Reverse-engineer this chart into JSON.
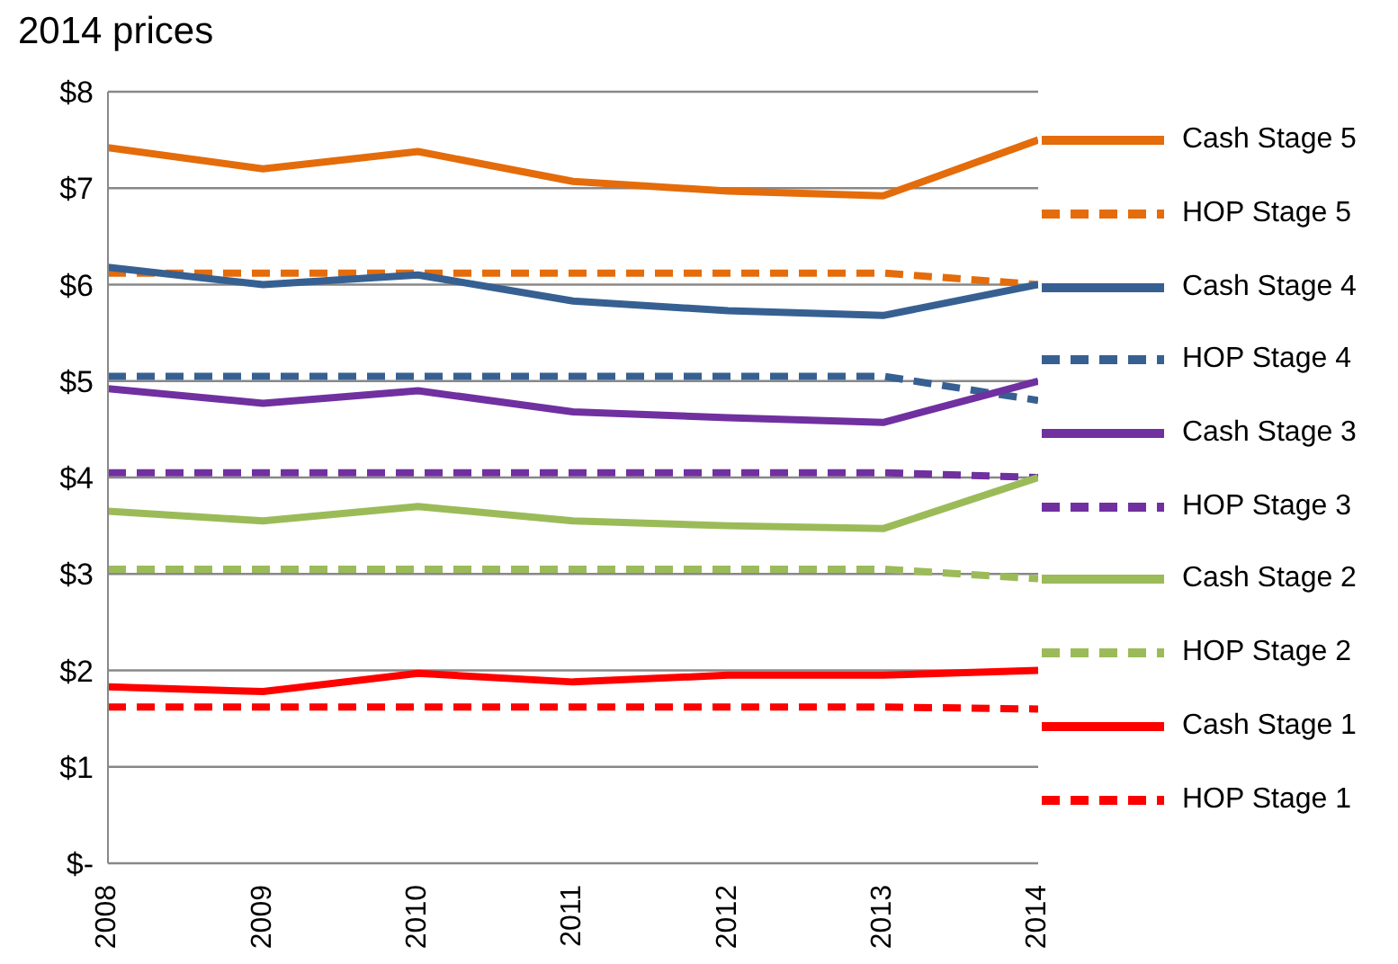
{
  "chart_data": {
    "type": "line",
    "title": "2014 prices",
    "x": [
      2008,
      2009,
      2010,
      2011,
      2012,
      2013,
      2014
    ],
    "xlim": [
      2008,
      2014
    ],
    "xticks": [
      2008,
      2009,
      2010,
      2011,
      2012,
      2013,
      2014
    ],
    "ylim": [
      0,
      8
    ],
    "yticks": [
      {
        "value": 0,
        "label": "$-"
      },
      {
        "value": 1,
        "label": "$1"
      },
      {
        "value": 2,
        "label": "$2"
      },
      {
        "value": 3,
        "label": "$3"
      },
      {
        "value": 4,
        "label": "$4"
      },
      {
        "value": 5,
        "label": "$5"
      },
      {
        "value": 6,
        "label": "$6"
      },
      {
        "value": 7,
        "label": "$7"
      },
      {
        "value": 8,
        "label": "$8"
      }
    ],
    "grid": "y",
    "legend": "right",
    "marker": "none",
    "series": [
      {
        "name": "Cash Stage 5",
        "color": "#e46c0a",
        "line_style": "solid",
        "values": [
          7.42,
          7.2,
          7.38,
          7.07,
          6.97,
          6.92,
          7.5
        ]
      },
      {
        "name": "HOP Stage 5",
        "color": "#e46c0a",
        "line_style": "dashed",
        "values": [
          6.12,
          6.12,
          6.12,
          6.12,
          6.12,
          6.12,
          6.0
        ]
      },
      {
        "name": "Cash Stage 4",
        "color": "#376092",
        "line_style": "solid",
        "values": [
          6.18,
          6.0,
          6.1,
          5.83,
          5.73,
          5.68,
          6.0
        ]
      },
      {
        "name": "HOP Stage 4",
        "color": "#376092",
        "line_style": "dashed",
        "values": [
          5.05,
          5.05,
          5.05,
          5.05,
          5.05,
          5.05,
          4.8
        ]
      },
      {
        "name": "Cash Stage 3",
        "color": "#7030a0",
        "line_style": "solid",
        "values": [
          4.92,
          4.77,
          4.9,
          4.68,
          4.62,
          4.57,
          5.0
        ]
      },
      {
        "name": "HOP Stage 3",
        "color": "#7030a0",
        "line_style": "dashed",
        "values": [
          4.05,
          4.05,
          4.05,
          4.05,
          4.05,
          4.05,
          4.0
        ]
      },
      {
        "name": "Cash Stage 2",
        "color": "#9bbb59",
        "line_style": "solid",
        "values": [
          3.65,
          3.55,
          3.7,
          3.55,
          3.5,
          3.47,
          4.0
        ]
      },
      {
        "name": "HOP Stage 2",
        "color": "#9bbb59",
        "line_style": "dashed",
        "values": [
          3.05,
          3.05,
          3.05,
          3.05,
          3.05,
          3.05,
          2.95
        ]
      },
      {
        "name": "Cash Stage 1",
        "color": "#ff0000",
        "line_style": "solid",
        "values": [
          1.83,
          1.78,
          1.97,
          1.88,
          1.95,
          1.95,
          2.0
        ]
      },
      {
        "name": "HOP Stage 1",
        "color": "#ff0000",
        "line_style": "dashed",
        "values": [
          1.62,
          1.62,
          1.62,
          1.62,
          1.62,
          1.62,
          1.6
        ]
      }
    ]
  }
}
